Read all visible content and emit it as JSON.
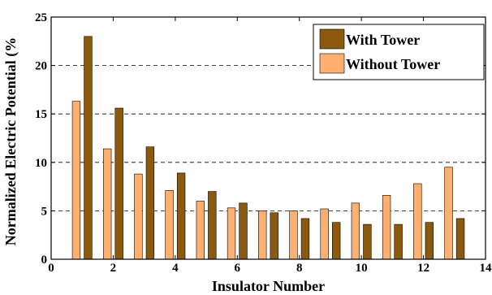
{
  "chart_data": {
    "type": "bar",
    "title": "",
    "xlabel": "Insulator Number",
    "ylabel": "Normalized Electric Potential (%",
    "xlim": [
      0,
      14
    ],
    "ylim": [
      0,
      25
    ],
    "xticks": [
      0,
      2,
      4,
      6,
      8,
      10,
      12,
      14
    ],
    "yticks": [
      0,
      5,
      10,
      15,
      20,
      25
    ],
    "grid": "horizontal-dashed",
    "legend_position": "top-right",
    "categories": [
      1,
      2,
      3,
      4,
      5,
      6,
      7,
      8,
      9,
      10,
      11,
      12,
      13
    ],
    "series": [
      {
        "name": "With Tower",
        "color": "#8b5a0e",
        "values": [
          23.0,
          15.6,
          11.6,
          8.9,
          7.0,
          5.8,
          4.8,
          4.2,
          3.8,
          3.6,
          3.6,
          3.8,
          4.2
        ]
      },
      {
        "name": "Without Tower",
        "color": "#ffb070",
        "values": [
          16.3,
          11.4,
          8.8,
          7.1,
          6.0,
          5.3,
          5.0,
          5.0,
          5.2,
          5.8,
          6.6,
          7.8,
          9.5
        ]
      }
    ]
  }
}
